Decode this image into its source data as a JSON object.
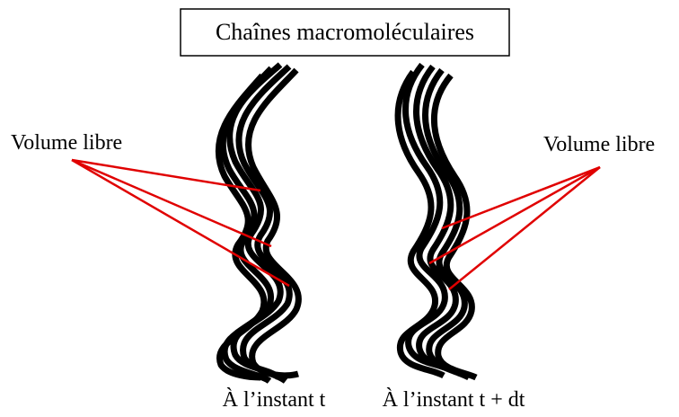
{
  "title": "Chaînes macromoléculaires",
  "labels": {
    "left": "Volume libre",
    "right": "Volume libre"
  },
  "captions": {
    "left": "À l’instant t",
    "right": "À l’instant t + dt"
  }
}
